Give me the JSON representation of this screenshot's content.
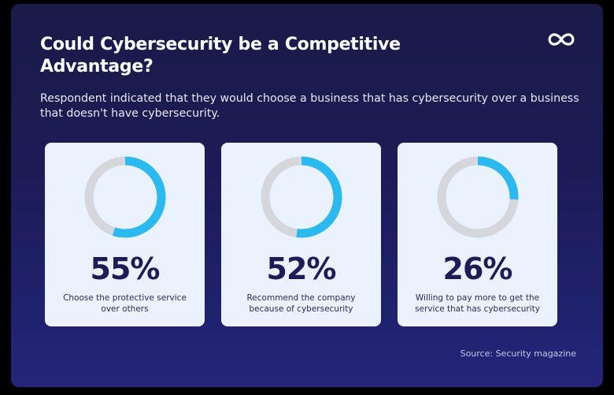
{
  "title": "Could Cybersecurity be a Competitive Advantage?",
  "subtitle": "Respondent indicated that they would choose a business that has cybersecurity over a business that doesn't have cybersecurity.",
  "logo_icon": "infinity-icon",
  "source": "Source: Security magazine",
  "colors": {
    "background": "#1b1c57",
    "card": "#eaf2fd",
    "accent": "#2bbaf0",
    "track": "#d5d7dc",
    "value_text": "#1c1d57"
  },
  "chart_data": {
    "type": "pie",
    "variant": "donut",
    "series": [
      {
        "value": 55,
        "display": "55%",
        "label": "Choose the protective service over others"
      },
      {
        "value": 52,
        "display": "52%",
        "label": "Recommend the company because of cybersecurity"
      },
      {
        "value": 26,
        "display": "26%",
        "label": "Willing to pay more to get the service that has cybersecurity"
      }
    ]
  }
}
